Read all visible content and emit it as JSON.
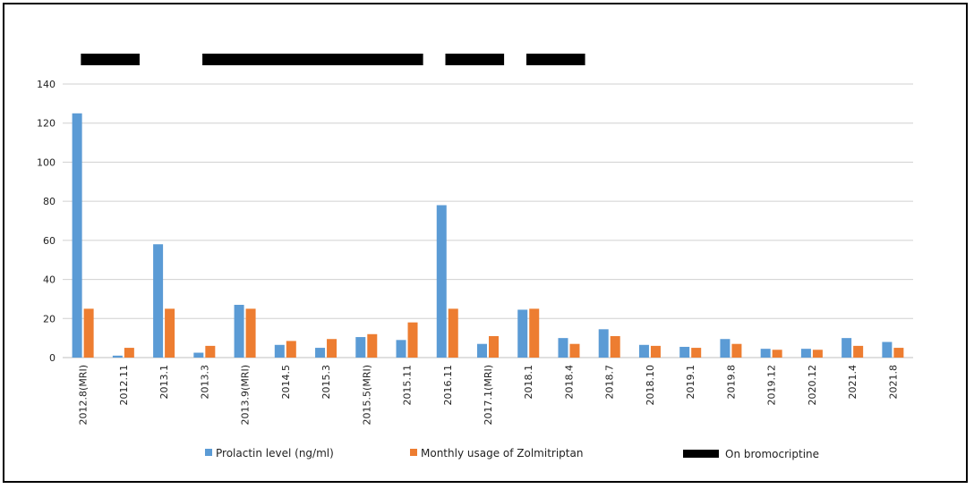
{
  "chart_data": {
    "type": "bar",
    "categories": [
      "2012.8(MRI)",
      "2012.11",
      "2013.1",
      "2013.3",
      "2013.9(MRI)",
      "2014.5",
      "2015.3",
      "2015.5(MRI)",
      "2015.11",
      "2016.11",
      "2017.1(MRI)",
      "2018.1",
      "2018.4",
      "2018.7",
      "2018.10",
      "2019.1",
      "2019.8",
      "2019.12",
      "2020.12",
      "2021.4",
      "2021.8"
    ],
    "series": [
      {
        "name": "Prolactin level (ng/ml)",
        "color": "#5b9bd5",
        "values": [
          125,
          1,
          58,
          2.5,
          27,
          6.5,
          5,
          10.5,
          9,
          78,
          7,
          24.5,
          10,
          14.5,
          6.5,
          5.5,
          9.5,
          4.5,
          4.5,
          10,
          8
        ]
      },
      {
        "name": "Monthly usage of Zolmitriptan",
        "color": "#ed7d31",
        "values": [
          25,
          5,
          25,
          6,
          25,
          8.5,
          9.5,
          12,
          18,
          25,
          11,
          25,
          7,
          11,
          6,
          5,
          7,
          4,
          4,
          6,
          5
        ]
      }
    ],
    "ylim": [
      0,
      140
    ],
    "yticks": [
      0,
      20,
      40,
      60,
      80,
      100,
      120,
      140
    ],
    "grid": true,
    "bromocriptine_periods": [
      {
        "start_category": "2012.8(MRI)",
        "end_category": "2012.11"
      },
      {
        "start_category": "2013.3",
        "end_category": "2015.11"
      },
      {
        "start_category": "2016.11",
        "end_category": "2017.1(MRI)"
      },
      {
        "start_category": "2018.1",
        "end_category": "2018.4"
      }
    ],
    "legend": {
      "position": "bottom",
      "items": [
        {
          "label": "Prolactin level (ng/ml)",
          "color": "#5b9bd5",
          "marker": "square"
        },
        {
          "label": "Monthly usage of Zolmitriptan",
          "color": "#ed7d31",
          "marker": "square"
        },
        {
          "label": "On bromocriptine",
          "color": "#000000",
          "marker": "thick-line"
        }
      ]
    }
  }
}
